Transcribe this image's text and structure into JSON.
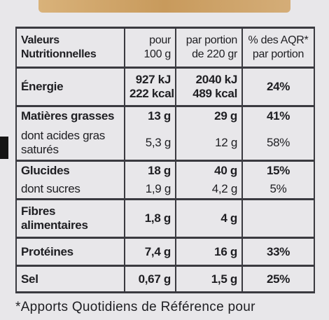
{
  "table": {
    "rows": [
      [
        [
          "Valeurs",
          "Nutritionnelles"
        ],
        [
          "pour",
          "100 g"
        ],
        [
          "par portion",
          "de 220 gr"
        ],
        [
          "% des AQR*",
          "par portion"
        ]
      ],
      [
        [
          "Énergie"
        ],
        [
          "927 kJ",
          "222 kcal"
        ],
        [
          "2040 kJ",
          "489 kcal"
        ],
        [
          "24%"
        ]
      ],
      [
        [
          "Matières grasses"
        ],
        [
          "13 g"
        ],
        [
          "29 g"
        ],
        [
          "41%"
        ]
      ],
      [
        [
          "dont acides gras",
          "saturés"
        ],
        [
          "5,3 g"
        ],
        [
          "12 g"
        ],
        [
          "58%"
        ]
      ],
      [
        [
          "Glucides"
        ],
        [
          "18 g"
        ],
        [
          "40 g"
        ],
        [
          "15%"
        ]
      ],
      [
        [
          "dont sucres"
        ],
        [
          "1,9 g"
        ],
        [
          "4,2 g"
        ],
        [
          "5%"
        ]
      ],
      [
        [
          "Fibres",
          "alimentaires"
        ],
        [
          "1,8 g"
        ],
        [
          "4 g"
        ],
        []
      ],
      [
        [
          "Protéines"
        ],
        [
          "7,4 g"
        ],
        [
          "16 g"
        ],
        [
          "33%"
        ]
      ],
      [
        [
          "Sel"
        ],
        [
          "0,67 g"
        ],
        [
          "1,5 g"
        ],
        [
          "25%"
        ]
      ]
    ]
  },
  "footnote": "*Apports Quotidiens de Référence pour"
}
